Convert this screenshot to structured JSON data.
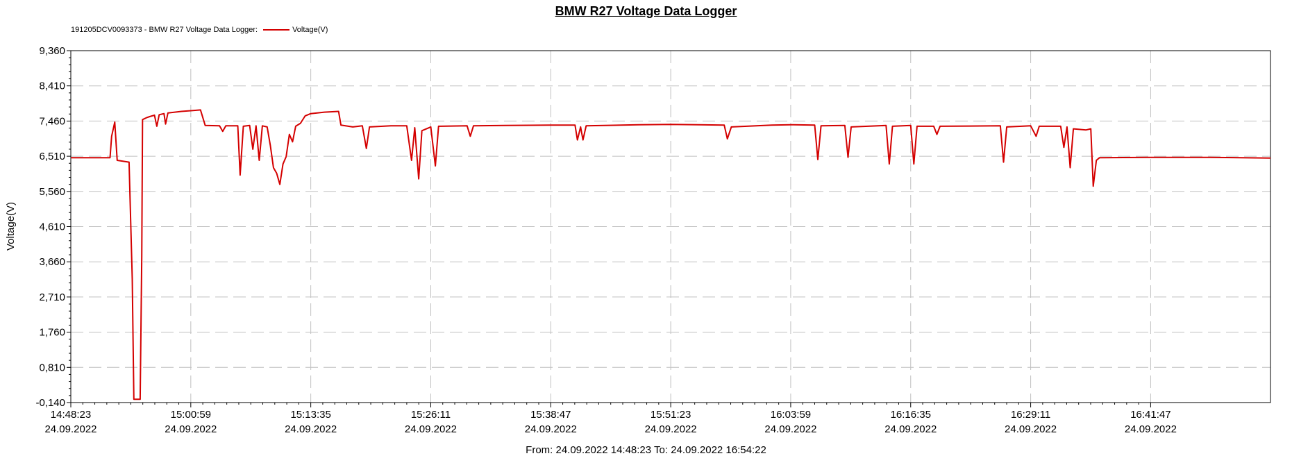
{
  "window": {
    "title": "BMW R27 Voltage Data Logger",
    "legend_prefix": "191205DCV0093373 - BMW R27 Voltage Data Logger:",
    "legend_series": "Voltage(V)",
    "range_text": "From: 24.09.2022 14:48:23   To: 24.09.2022 16:54:22"
  },
  "chart_data": {
    "type": "line",
    "title": "BMW R27 Voltage Data Logger",
    "ylabel": "Voltage(V)",
    "xlabel": "",
    "x_start": "24.09.2022 14:48:23",
    "x_end": "24.09.2022 16:54:22",
    "ylim": [
      -0.14,
      9.36
    ],
    "y_ticks": [
      "9,360",
      "8,410",
      "7,460",
      "6,510",
      "5,560",
      "4,610",
      "3,660",
      "2,710",
      "1,760",
      "0,810",
      "-0,140"
    ],
    "x_ticks": [
      {
        "time": "14:48:23",
        "date": "24.09.2022"
      },
      {
        "time": "15:00:59",
        "date": "24.09.2022"
      },
      {
        "time": "15:13:35",
        "date": "24.09.2022"
      },
      {
        "time": "15:26:11",
        "date": "24.09.2022"
      },
      {
        "time": "15:38:47",
        "date": "24.09.2022"
      },
      {
        "time": "15:51:23",
        "date": "24.09.2022"
      },
      {
        "time": "16:03:59",
        "date": "24.09.2022"
      },
      {
        "time": "16:16:35",
        "date": "24.09.2022"
      },
      {
        "time": "16:29:11",
        "date": "24.09.2022"
      },
      {
        "time": "16:41:47",
        "date": "24.09.2022"
      }
    ],
    "grid": true,
    "legend_position": "top-left",
    "series": [
      {
        "name": "Voltage(V)",
        "color": "#d40000",
        "points": [
          [
            "14:48:23",
            6.47
          ],
          [
            "14:52:30",
            6.47
          ],
          [
            "14:52:40",
            7.05
          ],
          [
            "14:53:00",
            7.43
          ],
          [
            "14:53:15",
            6.4
          ],
          [
            "14:54:30",
            6.35
          ],
          [
            "14:54:50",
            3.2
          ],
          [
            "14:55:00",
            -0.05
          ],
          [
            "14:55:40",
            -0.05
          ],
          [
            "14:55:50",
            3.8
          ],
          [
            "14:55:55",
            7.5
          ],
          [
            "14:56:20",
            7.55
          ],
          [
            "14:56:40",
            7.58
          ],
          [
            "14:57:10",
            7.62
          ],
          [
            "14:57:25",
            7.32
          ],
          [
            "14:57:40",
            7.63
          ],
          [
            "14:58:10",
            7.66
          ],
          [
            "14:58:20",
            7.38
          ],
          [
            "14:58:35",
            7.68
          ],
          [
            "15:00:00",
            7.72
          ],
          [
            "15:00:59",
            7.74
          ],
          [
            "15:02:00",
            7.76
          ],
          [
            "15:02:30",
            7.34
          ],
          [
            "15:04:00",
            7.33
          ],
          [
            "15:04:20",
            7.18
          ],
          [
            "15:04:40",
            7.33
          ],
          [
            "15:05:55",
            7.33
          ],
          [
            "15:06:10",
            6.0
          ],
          [
            "15:06:30",
            7.32
          ],
          [
            "15:07:10",
            7.34
          ],
          [
            "15:07:30",
            6.7
          ],
          [
            "15:07:50",
            7.33
          ],
          [
            "15:08:10",
            6.4
          ],
          [
            "15:08:30",
            7.33
          ],
          [
            "15:09:00",
            7.3
          ],
          [
            "15:09:20",
            6.8
          ],
          [
            "15:09:40",
            6.2
          ],
          [
            "15:10:00",
            6.05
          ],
          [
            "15:10:20",
            5.75
          ],
          [
            "15:10:40",
            6.3
          ],
          [
            "15:11:00",
            6.5
          ],
          [
            "15:11:20",
            7.1
          ],
          [
            "15:11:40",
            6.9
          ],
          [
            "15:12:00",
            7.32
          ],
          [
            "15:12:30",
            7.4
          ],
          [
            "15:13:00",
            7.6
          ],
          [
            "15:13:35",
            7.66
          ],
          [
            "15:15:00",
            7.7
          ],
          [
            "15:16:30",
            7.72
          ],
          [
            "15:16:45",
            7.35
          ],
          [
            "15:18:00",
            7.3
          ],
          [
            "15:19:00",
            7.33
          ],
          [
            "15:19:25",
            6.72
          ],
          [
            "15:19:45",
            7.3
          ],
          [
            "15:22:00",
            7.33
          ],
          [
            "15:23:40",
            7.33
          ],
          [
            "15:24:10",
            6.4
          ],
          [
            "15:24:30",
            7.28
          ],
          [
            "15:24:55",
            5.9
          ],
          [
            "15:25:15",
            7.2
          ],
          [
            "15:26:11",
            7.3
          ],
          [
            "15:26:40",
            6.25
          ],
          [
            "15:27:00",
            7.32
          ],
          [
            "15:30:00",
            7.33
          ],
          [
            "15:30:20",
            7.05
          ],
          [
            "15:30:40",
            7.33
          ],
          [
            "15:34:00",
            7.34
          ],
          [
            "15:38:47",
            7.35
          ],
          [
            "15:41:20",
            7.35
          ],
          [
            "15:41:35",
            6.95
          ],
          [
            "15:41:55",
            7.3
          ],
          [
            "15:42:10",
            6.95
          ],
          [
            "15:42:30",
            7.33
          ],
          [
            "15:48:00",
            7.36
          ],
          [
            "15:51:23",
            7.37
          ],
          [
            "15:57:00",
            7.35
          ],
          [
            "15:57:20",
            6.98
          ],
          [
            "15:57:45",
            7.3
          ],
          [
            "16:02:00",
            7.35
          ],
          [
            "16:03:59",
            7.36
          ],
          [
            "16:06:30",
            7.35
          ],
          [
            "16:06:50",
            6.42
          ],
          [
            "16:07:10",
            7.33
          ],
          [
            "16:09:40",
            7.34
          ],
          [
            "16:10:00",
            6.48
          ],
          [
            "16:10:20",
            7.3
          ],
          [
            "16:14:00",
            7.34
          ],
          [
            "16:14:20",
            6.3
          ],
          [
            "16:14:40",
            7.32
          ],
          [
            "16:16:35",
            7.34
          ],
          [
            "16:16:55",
            6.3
          ],
          [
            "16:17:15",
            7.32
          ],
          [
            "16:19:00",
            7.32
          ],
          [
            "16:19:20",
            7.1
          ],
          [
            "16:19:40",
            7.32
          ],
          [
            "16:26:00",
            7.33
          ],
          [
            "16:26:20",
            6.35
          ],
          [
            "16:26:40",
            7.3
          ],
          [
            "16:29:11",
            7.33
          ],
          [
            "16:29:45",
            7.05
          ],
          [
            "16:30:05",
            7.32
          ],
          [
            "16:32:20",
            7.32
          ],
          [
            "16:32:40",
            6.75
          ],
          [
            "16:33:00",
            7.3
          ],
          [
            "16:33:20",
            6.2
          ],
          [
            "16:33:40",
            7.25
          ],
          [
            "16:35:00",
            7.22
          ],
          [
            "16:35:30",
            7.25
          ],
          [
            "16:35:45",
            5.7
          ],
          [
            "16:36:05",
            6.4
          ],
          [
            "16:36:25",
            6.47
          ],
          [
            "16:41:47",
            6.48
          ],
          [
            "16:48:00",
            6.48
          ],
          [
            "16:54:22",
            6.46
          ]
        ]
      }
    ]
  }
}
